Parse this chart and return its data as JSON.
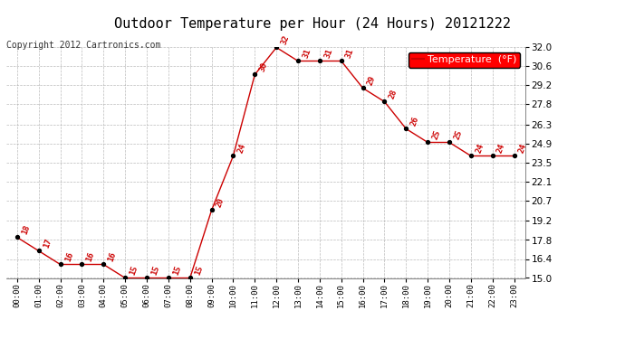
{
  "title": "Outdoor Temperature per Hour (24 Hours) 20121222",
  "copyright": "Copyright 2012 Cartronics.com",
  "legend_label": "Temperature  (°F)",
  "hours": [
    "00:00",
    "01:00",
    "02:00",
    "03:00",
    "04:00",
    "05:00",
    "06:00",
    "07:00",
    "08:00",
    "09:00",
    "10:00",
    "11:00",
    "12:00",
    "13:00",
    "14:00",
    "15:00",
    "16:00",
    "17:00",
    "18:00",
    "19:00",
    "20:00",
    "21:00",
    "22:00",
    "23:00"
  ],
  "temps": [
    18,
    17,
    16,
    16,
    16,
    15,
    15,
    15,
    15,
    20,
    24,
    30,
    32,
    31,
    31,
    31,
    29,
    28,
    26,
    25,
    25,
    24,
    24,
    24
  ],
  "line_color": "#cc0000",
  "marker_color": "#000000",
  "bg_color": "#ffffff",
  "grid_color": "#aaaaaa",
  "label_color": "#cc0000",
  "ylim_min": 15.0,
  "ylim_max": 32.0,
  "yticks": [
    15.0,
    16.4,
    17.8,
    19.2,
    20.7,
    22.1,
    23.5,
    24.9,
    26.3,
    27.8,
    29.2,
    30.6,
    32.0
  ],
  "title_fontsize": 11,
  "copyright_fontsize": 7,
  "legend_fontsize": 8,
  "data_label_fontsize": 6.5
}
